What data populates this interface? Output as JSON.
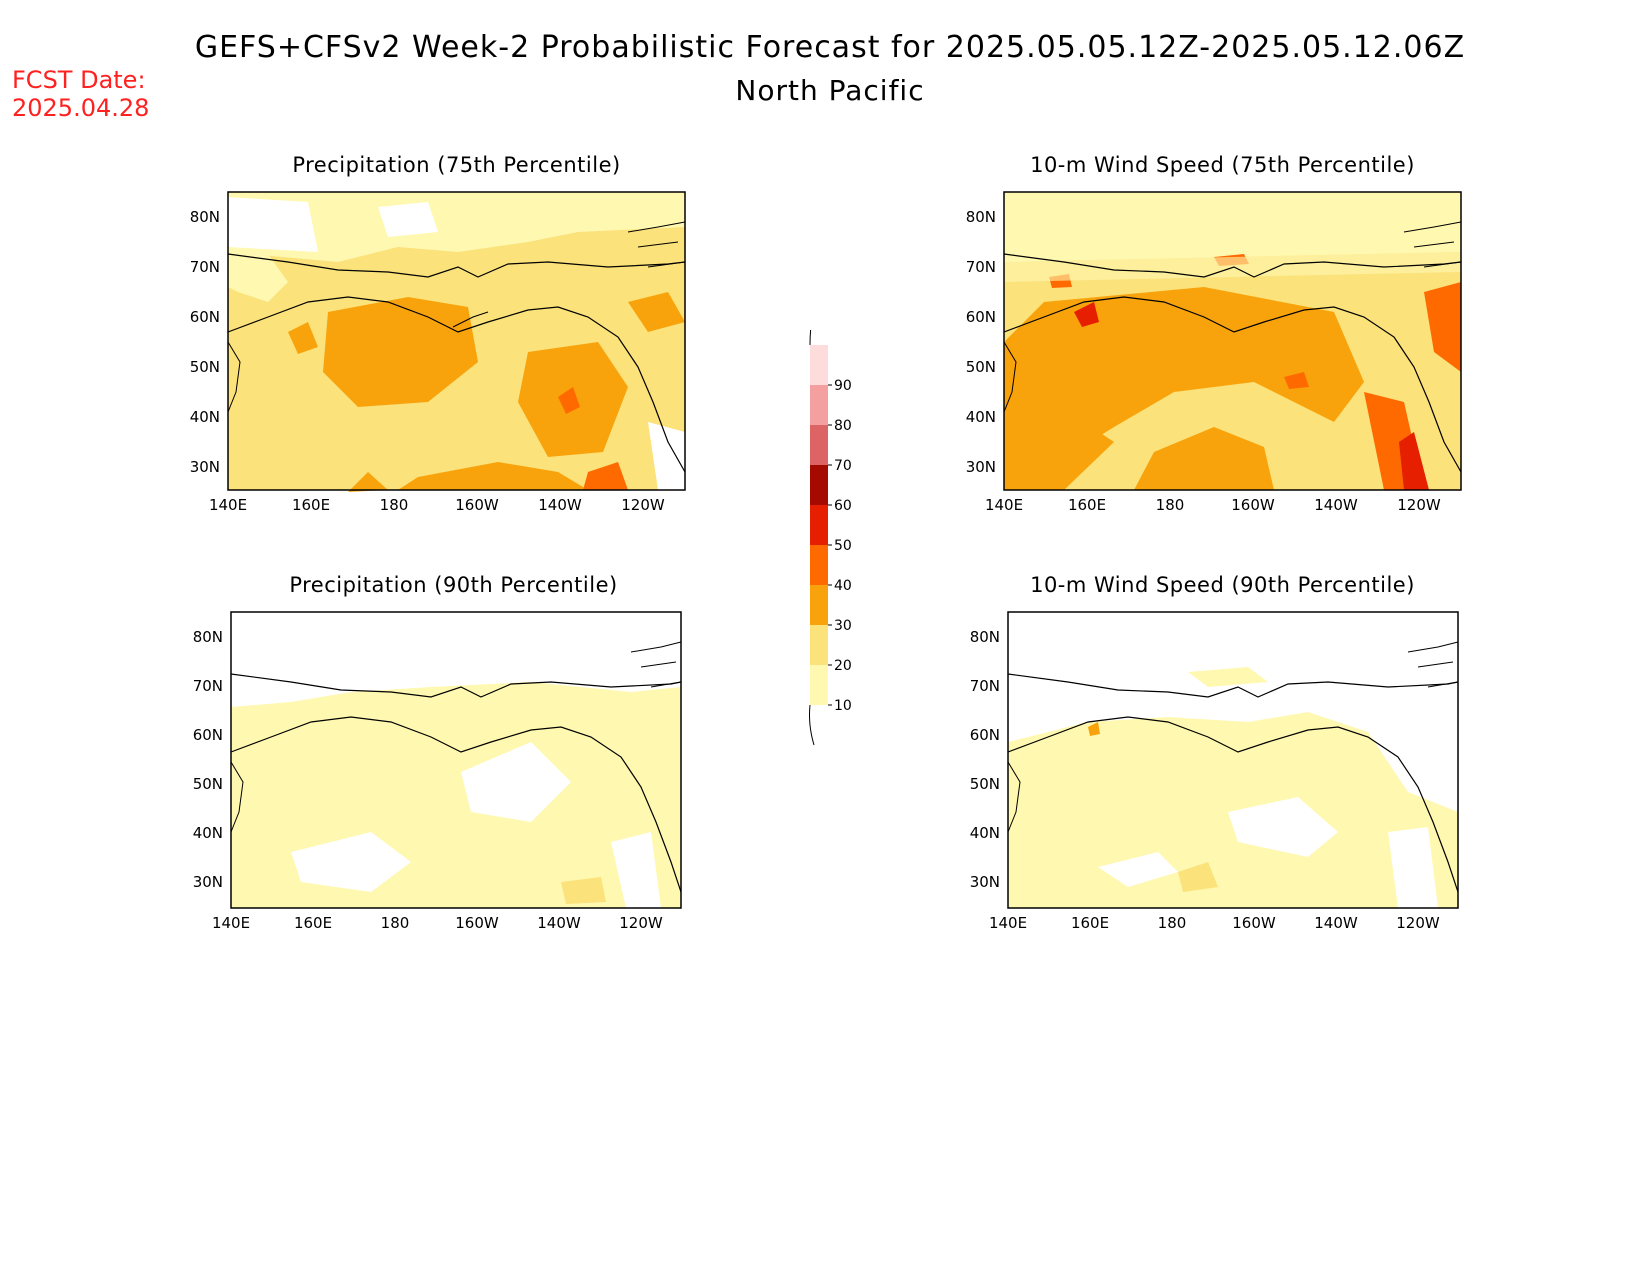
{
  "header": {
    "title": "GEFS+CFSv2 Week-2 Probabilistic Forecast for 2025.05.05.12Z-2025.05.12.06Z",
    "subtitle": "North Pacific",
    "fcst_label": "FCST Date:",
    "fcst_date": "2025.04.28"
  },
  "panels": [
    {
      "title": "Precipitation (75th Percentile)"
    },
    {
      "title": "10-m Wind Speed (75th Percentile)"
    },
    {
      "title": "Precipitation (90th Percentile)"
    },
    {
      "title": "10-m Wind Speed (90th Percentile)"
    }
  ],
  "axes": {
    "lon_labels": [
      "140E",
      "160E",
      "180",
      "160W",
      "140W",
      "120W"
    ],
    "lat_labels": [
      "80N",
      "70N",
      "60N",
      "50N",
      "40N",
      "30N"
    ]
  },
  "colorbar": {
    "levels": [
      "10",
      "20",
      "30",
      "40",
      "50",
      "60",
      "70",
      "80",
      "90"
    ],
    "colors": [
      "#fff8b0",
      "#fbe27a",
      "#f9a30c",
      "#ff6a00",
      "#e51f00",
      "#a50a00",
      "#dc6464",
      "#f4a0a0",
      "#ffdcdc"
    ]
  }
}
